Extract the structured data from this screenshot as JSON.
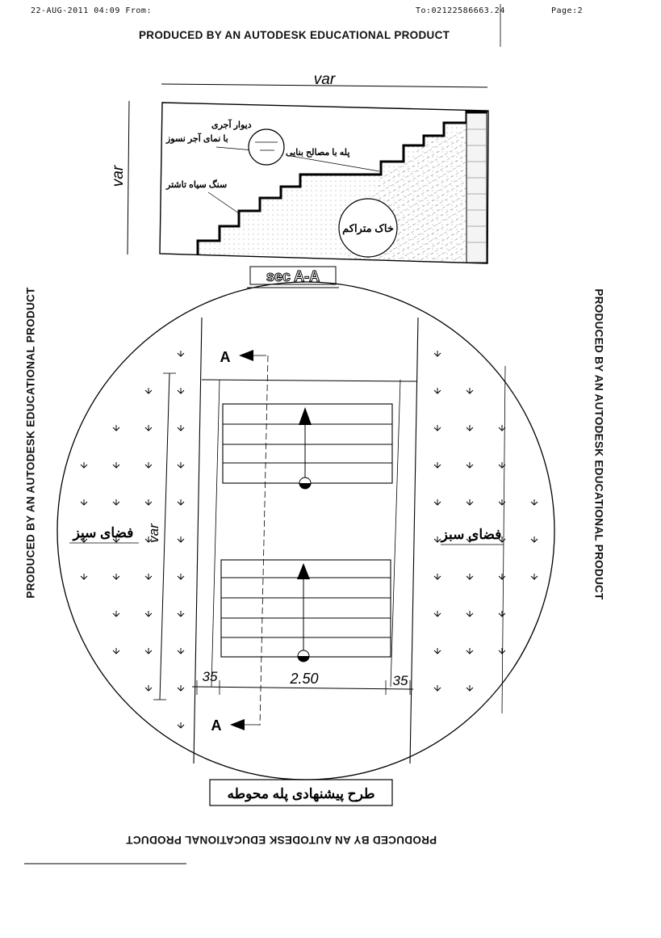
{
  "fax_header": {
    "date_from": "22-AUG-2011 04:09 From:",
    "to": "To:02122586663.24",
    "page": "Page:2"
  },
  "watermark": "PRODUCED BY AN AUTODESK EDUCATIONAL PRODUCT",
  "section": {
    "width_label": "var",
    "height_label": "var",
    "notes": {
      "brick_wall": "دیوار آجری",
      "brick_facing": "با نمای آجر نسوز",
      "stair_material": "پله با مصالح بنایی",
      "stone": "سنگ سیاه تاشتر",
      "soil": "خاک متراکم"
    },
    "title": "sec A-A"
  },
  "plan": {
    "cut_marker": "A",
    "length_label": "var",
    "green_space_left": "فضای سبز",
    "green_space_right": "فضای سبز",
    "dim_left": "35",
    "dim_center": "2.50",
    "dim_right": "35",
    "title": "طرح پیشنهادی پله محوطه"
  }
}
